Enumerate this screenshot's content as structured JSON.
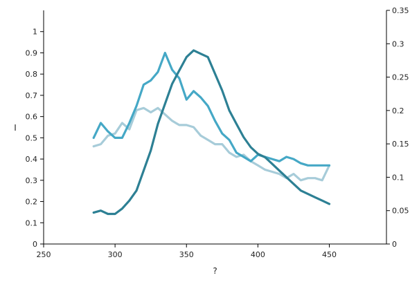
{
  "chart_data": {
    "type": "line",
    "title": "",
    "xlabel": "?",
    "ylabel": "I",
    "y2label": "",
    "xlim": [
      250,
      490
    ],
    "ylim": [
      0,
      1.1
    ],
    "y2lim": [
      0,
      0.35
    ],
    "grid": false,
    "legend": "none",
    "x_ticks": [
      250,
      300,
      350,
      400,
      450
    ],
    "y_ticks": [
      0,
      0.1,
      0.2,
      0.3,
      0.4,
      0.5,
      0.6,
      0.7,
      0.8,
      0.9,
      1
    ],
    "y2_ticks": [
      0,
      0.05,
      0.1,
      0.15,
      0.2,
      0.25,
      0.3,
      0.35
    ],
    "series": [
      {
        "axis": "left",
        "color": "#a7ccd9",
        "x": [
          285,
          290,
          295,
          300,
          305,
          310,
          315,
          320,
          325,
          330,
          335,
          340,
          345,
          350,
          355,
          360,
          365,
          370,
          375,
          380,
          385,
          390,
          395,
          400,
          405,
          410,
          415,
          420,
          425,
          430,
          435,
          440,
          445,
          450
        ],
        "y": [
          0.46,
          0.47,
          0.51,
          0.52,
          0.57,
          0.54,
          0.63,
          0.64,
          0.62,
          0.64,
          0.61,
          0.58,
          0.56,
          0.56,
          0.55,
          0.51,
          0.49,
          0.47,
          0.47,
          0.43,
          0.41,
          0.42,
          0.39,
          0.37,
          0.35,
          0.34,
          0.33,
          0.31,
          0.33,
          0.3,
          0.31,
          0.31,
          0.3,
          0.37
        ]
      },
      {
        "axis": "left",
        "color": "#45a8c6",
        "x": [
          285,
          290,
          295,
          300,
          305,
          310,
          315,
          320,
          325,
          330,
          335,
          340,
          345,
          350,
          355,
          360,
          365,
          370,
          375,
          380,
          385,
          390,
          395,
          400,
          405,
          410,
          415,
          420,
          425,
          430,
          435,
          440,
          445,
          450
        ],
        "y": [
          0.5,
          0.57,
          0.53,
          0.5,
          0.5,
          0.57,
          0.65,
          0.75,
          0.77,
          0.81,
          0.9,
          0.82,
          0.78,
          0.68,
          0.72,
          0.69,
          0.65,
          0.58,
          0.52,
          0.49,
          0.43,
          0.41,
          0.39,
          0.42,
          0.41,
          0.4,
          0.39,
          0.41,
          0.4,
          0.38,
          0.37,
          0.37,
          0.37,
          0.37
        ]
      },
      {
        "axis": "right",
        "color": "#2d8094",
        "x": [
          285,
          290,
          295,
          300,
          305,
          310,
          315,
          320,
          325,
          330,
          335,
          340,
          345,
          350,
          355,
          360,
          365,
          370,
          375,
          380,
          385,
          390,
          395,
          400,
          405,
          410,
          415,
          420,
          425,
          430,
          435,
          440,
          445,
          450
        ],
        "y": [
          0.047,
          0.05,
          0.045,
          0.045,
          0.053,
          0.065,
          0.08,
          0.11,
          0.14,
          0.18,
          0.21,
          0.24,
          0.26,
          0.28,
          0.29,
          0.285,
          0.28,
          0.255,
          0.23,
          0.2,
          0.18,
          0.16,
          0.145,
          0.135,
          0.13,
          0.12,
          0.11,
          0.1,
          0.09,
          0.08,
          0.075,
          0.07,
          0.065,
          0.06
        ]
      }
    ]
  }
}
